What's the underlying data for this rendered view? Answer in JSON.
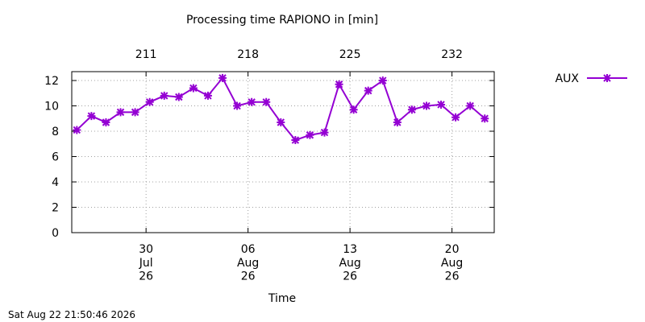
{
  "chart_data": {
    "type": "line",
    "title": "Processing time RAPIONO in [min]",
    "xlabel": "Time",
    "timestamp": "Sat Aug 22 21:50:46 2026",
    "x": [
      206.25,
      207.25,
      208.25,
      209.25,
      210.25,
      211.25,
      212.25,
      213.25,
      214.25,
      215.25,
      216.25,
      217.25,
      218.25,
      219.25,
      220.25,
      221.25,
      222.25,
      223.25,
      224.25,
      225.25,
      226.25,
      227.25,
      228.25,
      229.25,
      230.25,
      231.25,
      232.25,
      233.25,
      234.25
    ],
    "series": [
      {
        "name": "AUX",
        "color": "#9400d3",
        "values": [
          8.1,
          9.2,
          8.7,
          9.5,
          9.5,
          10.3,
          10.8,
          10.7,
          11.4,
          10.8,
          12.2,
          10.0,
          10.3,
          10.3,
          8.7,
          7.3,
          7.7,
          7.9,
          11.7,
          9.7,
          11.2,
          12.0,
          8.7,
          9.7,
          10.0,
          10.1,
          9.1,
          10.0,
          9.0
        ]
      }
    ],
    "xlim": [
      205.9,
      234.9
    ],
    "xticks": [
      {
        "value": 211,
        "label": "30\nJul\n26"
      },
      {
        "value": 218,
        "label": "06\nAug\n26"
      },
      {
        "value": 225,
        "label": "13\nAug\n26"
      },
      {
        "value": 232,
        "label": "20\nAug\n26"
      }
    ],
    "x2ticks": [
      211,
      218,
      225,
      232
    ],
    "ylim": [
      0,
      12.7
    ],
    "yticks": [
      0,
      2,
      4,
      6,
      8,
      10,
      12
    ],
    "grid": true,
    "legend": "outside-right"
  }
}
